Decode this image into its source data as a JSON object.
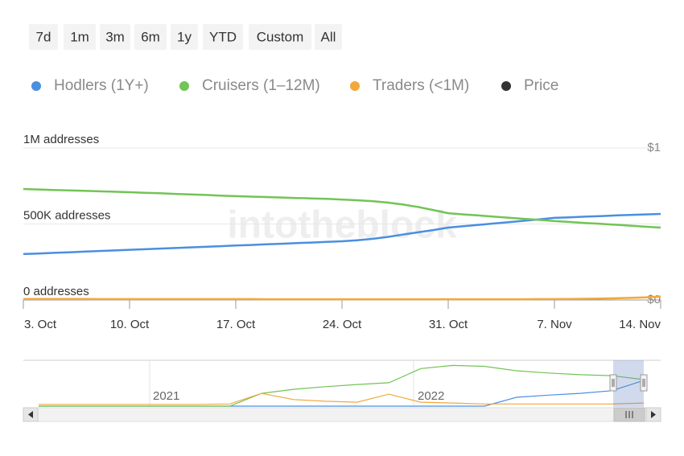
{
  "chart_data": {
    "type": "line",
    "buttons": [
      "7d",
      "1m",
      "3m",
      "6m",
      "1y",
      "YTD",
      "Custom",
      "All"
    ],
    "watermark": "intotheblock",
    "x": [
      "3. Oct",
      "4. Oct",
      "5. Oct",
      "6. Oct",
      "7. Oct",
      "8. Oct",
      "9. Oct",
      "10. Oct",
      "11. Oct",
      "12. Oct",
      "13. Oct",
      "14. Oct",
      "15. Oct",
      "16. Oct",
      "17. Oct",
      "18. Oct",
      "19. Oct",
      "20. Oct",
      "21. Oct",
      "22. Oct",
      "23. Oct",
      "24. Oct",
      "25. Oct",
      "26. Oct",
      "27. Oct",
      "28. Oct",
      "29. Oct",
      "30. Oct",
      "31. Oct",
      "1. Nov",
      "2. Nov",
      "3. Nov",
      "4. Nov",
      "5. Nov",
      "6. Nov",
      "7. Nov",
      "8. Nov",
      "9. Nov",
      "10. Nov",
      "11. Nov",
      "12. Nov",
      "13. Nov",
      "14. Nov"
    ],
    "xticks": [
      "3. Oct",
      "10. Oct",
      "17. Oct",
      "24. Oct",
      "31. Oct",
      "7. Nov",
      "14. Nov"
    ],
    "ylim": [
      0,
      1000000
    ],
    "yticks": [
      {
        "value": 0,
        "label": "0 addresses"
      },
      {
        "value": 500000,
        "label": "500K addresses"
      },
      {
        "value": 1000000,
        "label": "1M addresses"
      }
    ],
    "y2lim": [
      0,
      1
    ],
    "y2ticks": [
      {
        "value": 0,
        "label": "$0"
      },
      {
        "value": 1,
        "label": "$1"
      }
    ],
    "grid": true,
    "series": [
      {
        "name": "Hodlers (1Y+)",
        "color": "#4a8fe0",
        "values": [
          302000,
          306000,
          310000,
          314000,
          318000,
          322000,
          326000,
          330000,
          334000,
          338000,
          342000,
          346000,
          350000,
          354000,
          358000,
          362000,
          366000,
          370000,
          374000,
          378000,
          382000,
          386000,
          393000,
          402000,
          415000,
          430000,
          445000,
          460000,
          476000,
          485000,
          494000,
          503000,
          512000,
          521000,
          530000,
          540000,
          544000,
          548000,
          552000,
          556000,
          560000,
          563000,
          566000
        ]
      },
      {
        "name": "Cruisers (1–12M)",
        "color": "#72c455",
        "values": [
          730000,
          727000,
          724000,
          721000,
          718000,
          715000,
          712000,
          709000,
          705000,
          702000,
          698000,
          694000,
          691000,
          687000,
          683000,
          680000,
          677000,
          674000,
          671000,
          668000,
          665000,
          661000,
          656000,
          650000,
          641000,
          628000,
          612000,
          592000,
          571000,
          563000,
          556000,
          548000,
          541000,
          534000,
          527000,
          519000,
          513000,
          507000,
          501000,
          495000,
          489000,
          482000,
          476000
        ]
      },
      {
        "name": "Traders (<1M)",
        "color": "#f2a83a",
        "values": [
          7000,
          7000,
          7000,
          7000,
          7000,
          6000,
          6000,
          6000,
          6000,
          6000,
          6000,
          6000,
          6000,
          6000,
          6000,
          6000,
          5000,
          5000,
          5000,
          5000,
          5000,
          5000,
          5000,
          5000,
          5000,
          5000,
          5000,
          5000,
          5000,
          5000,
          5000,
          5000,
          5000,
          5000,
          6000,
          6000,
          7000,
          8000,
          9000,
          11000,
          14000,
          17000,
          22000
        ]
      },
      {
        "name": "Price",
        "color": "#333333",
        "axis": "y2",
        "values": [
          null,
          null,
          null,
          null,
          null,
          null,
          null,
          null,
          null,
          null,
          null,
          null,
          null,
          null,
          null,
          null,
          null,
          null,
          null,
          null,
          null,
          null,
          null,
          null,
          null,
          null,
          null,
          null,
          null,
          null,
          null,
          null,
          null,
          null,
          null,
          null,
          null,
          null,
          null,
          null,
          null,
          null,
          null
        ]
      }
    ],
    "navigator": {
      "labels": [
        "2021",
        "2022"
      ],
      "ylim": [
        0,
        1000000
      ],
      "series": [
        {
          "color": "#4a8fe0",
          "values": [
            0,
            0,
            0,
            0,
            0,
            0,
            0,
            0,
            0,
            0,
            0,
            0,
            0,
            0,
            0,
            200000,
            250000,
            290000,
            350000,
            580000
          ]
        },
        {
          "color": "#72c455",
          "values": [
            0,
            0,
            0,
            0,
            0,
            0,
            0,
            290000,
            380000,
            440000,
            490000,
            530000,
            850000,
            920000,
            900000,
            800000,
            750000,
            710000,
            690000,
            600000
          ]
        },
        {
          "color": "#f2a83a",
          "values": [
            40000,
            40000,
            40000,
            40000,
            40000,
            40000,
            50000,
            290000,
            150000,
            110000,
            90000,
            270000,
            90000,
            70000,
            50000,
            50000,
            50000,
            50000,
            50000,
            70000
          ]
        }
      ]
    }
  }
}
